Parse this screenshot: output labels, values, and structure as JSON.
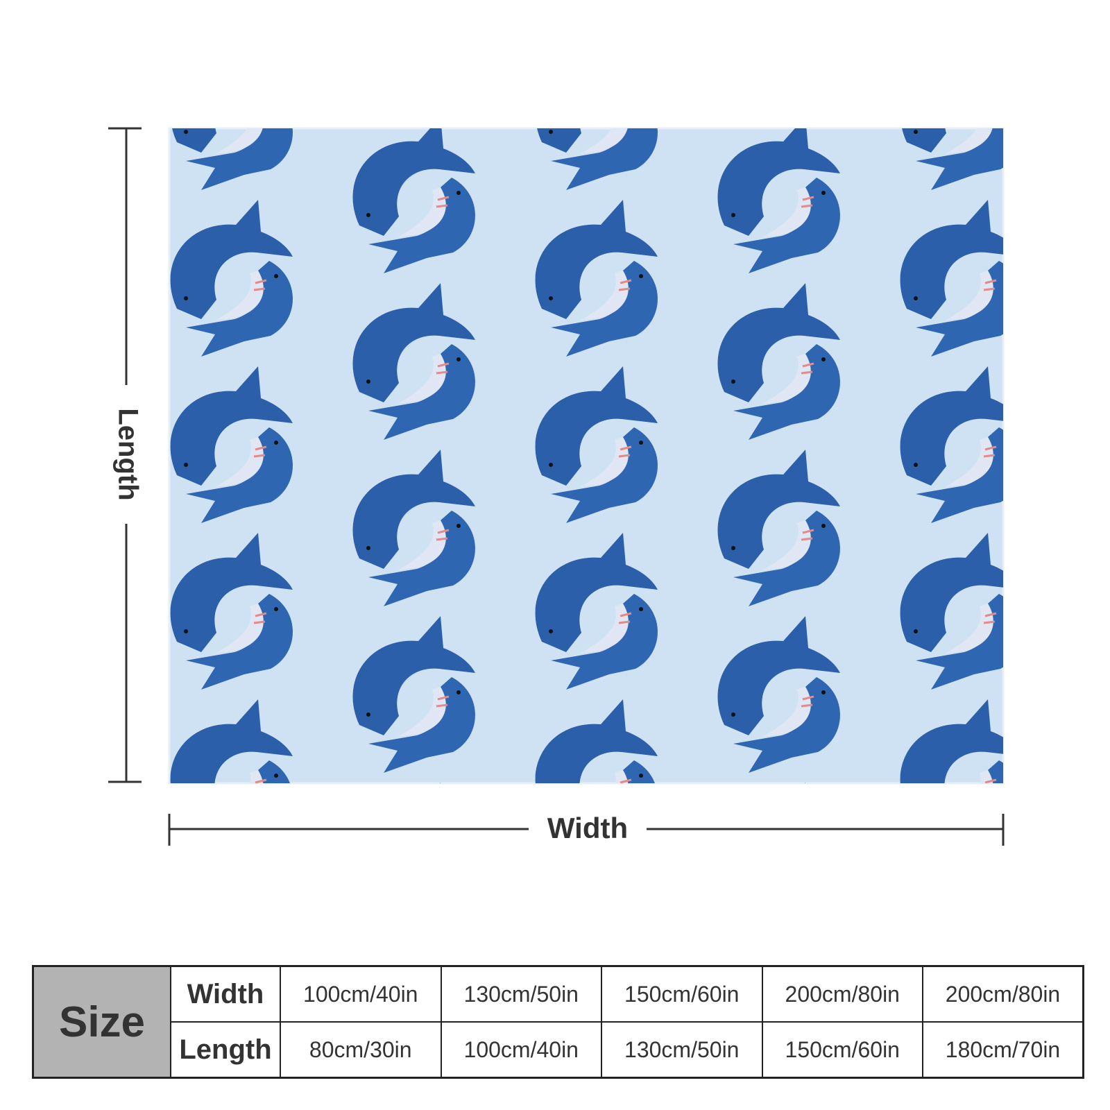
{
  "dimensions": {
    "length": "Length",
    "width": "Width"
  },
  "table": {
    "header": "Size",
    "rows": [
      [
        "Width",
        "100cm/40in",
        "130cm/50in",
        "150cm/60in",
        "200cm/80in",
        "200cm/80in"
      ],
      [
        "Length",
        "80cm/30in",
        "100cm/40in",
        "130cm/50in",
        "150cm/60in",
        "180cm/70in"
      ]
    ]
  }
}
